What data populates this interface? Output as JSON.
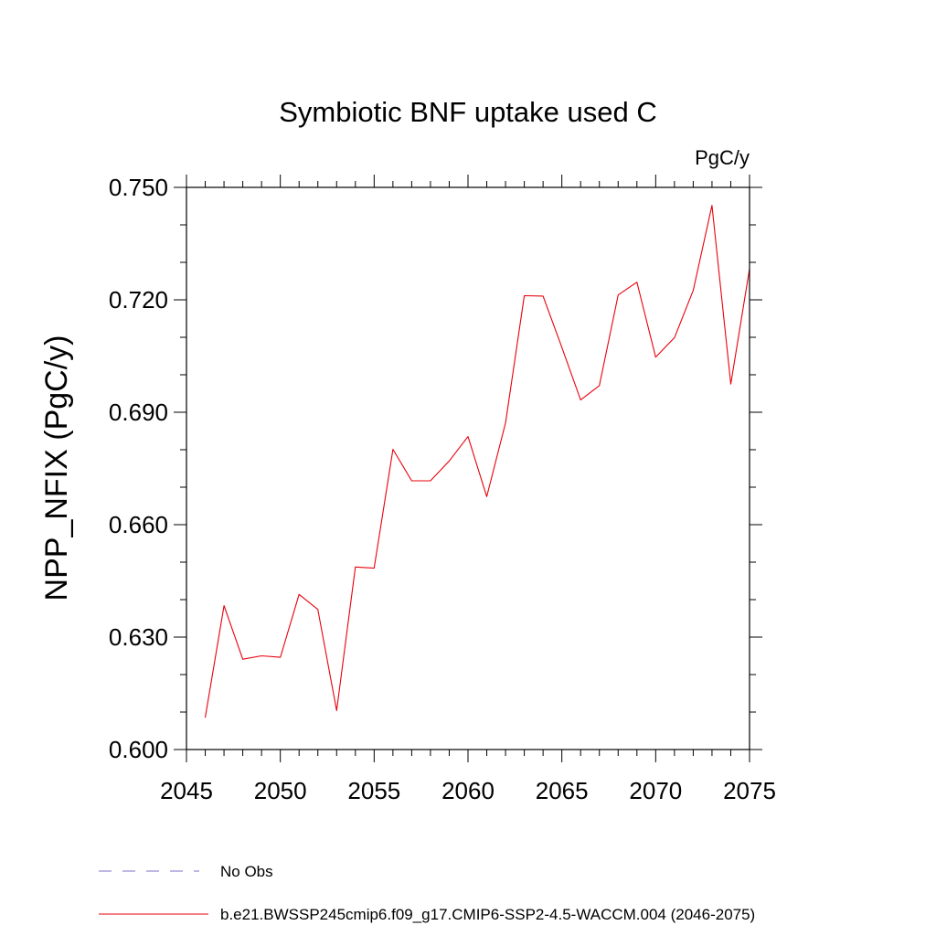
{
  "chart_data": {
    "type": "line",
    "title": "Symbiotic BNF uptake used C",
    "units": "PgC/y",
    "xlabel": "",
    "ylabel": "NPP_NFIX  (PgC/y)",
    "xlim": [
      2045,
      2075
    ],
    "ylim": [
      0.6,
      0.75
    ],
    "xticks": [
      2045,
      2050,
      2055,
      2060,
      2065,
      2070,
      2075
    ],
    "xtick_labels": [
      "2045",
      "2050",
      "2055",
      "2060",
      "2065",
      "2070",
      "2075"
    ],
    "yticks": [
      0.6,
      0.63,
      0.66,
      0.69,
      0.72,
      0.75
    ],
    "ytick_labels": [
      "0.600",
      "0.630",
      "0.660",
      "0.690",
      "0.720",
      "0.750"
    ],
    "series": [
      {
        "name": "b.e21.BWSSP245cmip6.f09_g17.CMIP6-SSP2-4.5-WACCM.004 (2046-2075)",
        "color": "#e8000b",
        "x": [
          2046,
          2047,
          2048,
          2049,
          2050,
          2051,
          2052,
          2053,
          2054,
          2055,
          2056,
          2057,
          2058,
          2059,
          2060,
          2061,
          2062,
          2063,
          2064,
          2065,
          2066,
          2067,
          2068,
          2069,
          2070,
          2071,
          2072,
          2073,
          2074,
          2075
        ],
        "values": [
          0.6085,
          0.6384,
          0.6241,
          0.625,
          0.6246,
          0.6414,
          0.6374,
          0.6104,
          0.6487,
          0.6484,
          0.6801,
          0.6717,
          0.6717,
          0.677,
          0.6835,
          0.6675,
          0.6872,
          0.7211,
          0.721,
          0.7073,
          0.6933,
          0.6971,
          0.7213,
          0.7247,
          0.7047,
          0.7099,
          0.7225,
          0.7452,
          0.6975,
          0.7283
        ]
      }
    ],
    "legend": [
      {
        "label": "No Obs",
        "color": "#7b6fc8",
        "style": "dashed"
      },
      {
        "label": "b.e21.BWSSP245cmip6.f09_g17.CMIP6-SSP2-4.5-WACCM.004 (2046-2075)",
        "color": "#e8000b",
        "style": "solid"
      }
    ]
  }
}
